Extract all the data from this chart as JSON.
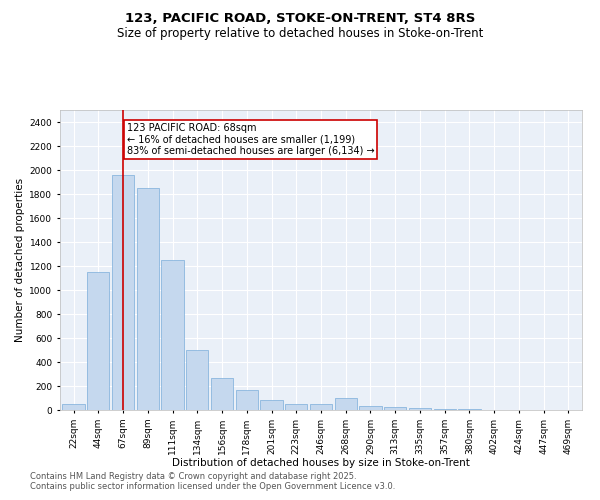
{
  "title1": "123, PACIFIC ROAD, STOKE-ON-TRENT, ST4 8RS",
  "title2": "Size of property relative to detached houses in Stoke-on-Trent",
  "xlabel": "Distribution of detached houses by size in Stoke-on-Trent",
  "ylabel": "Number of detached properties",
  "categories": [
    "22sqm",
    "44sqm",
    "67sqm",
    "89sqm",
    "111sqm",
    "134sqm",
    "156sqm",
    "178sqm",
    "201sqm",
    "223sqm",
    "246sqm",
    "268sqm",
    "290sqm",
    "313sqm",
    "335sqm",
    "357sqm",
    "380sqm",
    "402sqm",
    "424sqm",
    "447sqm",
    "469sqm"
  ],
  "values": [
    50,
    1150,
    1960,
    1850,
    1250,
    500,
    270,
    170,
    80,
    50,
    50,
    100,
    35,
    25,
    15,
    5,
    5,
    3,
    2,
    2,
    2
  ],
  "bar_color": "#c5d8ee",
  "bar_edgecolor": "#7aadda",
  "redline_index": 2,
  "annotation_text": "123 PACIFIC ROAD: 68sqm\n← 16% of detached houses are smaller (1,199)\n83% of semi-detached houses are larger (6,134) →",
  "annotation_box_color": "#ffffff",
  "annotation_border_color": "#cc0000",
  "ylim": [
    0,
    2500
  ],
  "yticks": [
    0,
    200,
    400,
    600,
    800,
    1000,
    1200,
    1400,
    1600,
    1800,
    2000,
    2200,
    2400
  ],
  "footnote1": "Contains HM Land Registry data © Crown copyright and database right 2025.",
  "footnote2": "Contains public sector information licensed under the Open Government Licence v3.0.",
  "bg_color": "#eaf0f8",
  "grid_color": "#ffffff",
  "title1_fontsize": 9.5,
  "title2_fontsize": 8.5,
  "xlabel_fontsize": 7.5,
  "ylabel_fontsize": 7.5,
  "tick_fontsize": 6.5,
  "annot_fontsize": 7,
  "footnote_fontsize": 6
}
